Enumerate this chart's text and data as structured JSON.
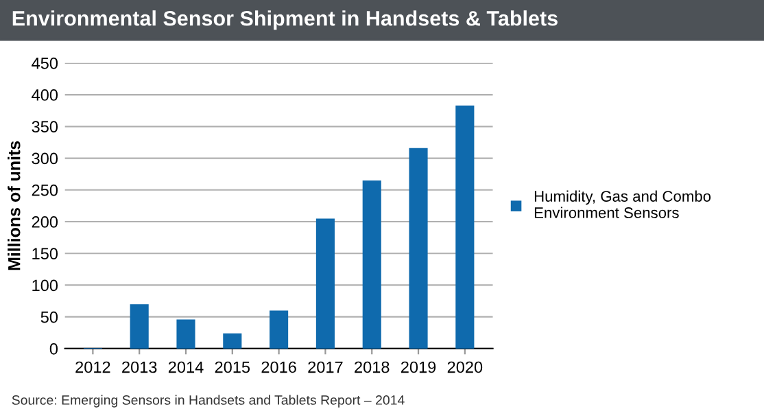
{
  "chart_data": {
    "type": "bar",
    "title": "Environmental Sensor Shipment in Handsets & Tablets",
    "ylabel": "Millions of units",
    "categories": [
      "2012",
      "2013",
      "2014",
      "2015",
      "2016",
      "2017",
      "2018",
      "2019",
      "2020"
    ],
    "series": [
      {
        "name": "Humidity, Gas and Combo\nEnvironment Sensors",
        "color": "#0f6aad",
        "values": [
          1,
          70,
          46,
          24,
          60,
          205,
          265,
          316,
          383
        ]
      }
    ],
    "ylim": [
      0,
      450
    ],
    "yticks": [
      0,
      50,
      100,
      150,
      200,
      250,
      300,
      350,
      400,
      450
    ],
    "grid": "y",
    "legend": "right",
    "annotations": [
      "Source: Emerging Sensors in Handsets and Tablets Report – 2014"
    ]
  }
}
